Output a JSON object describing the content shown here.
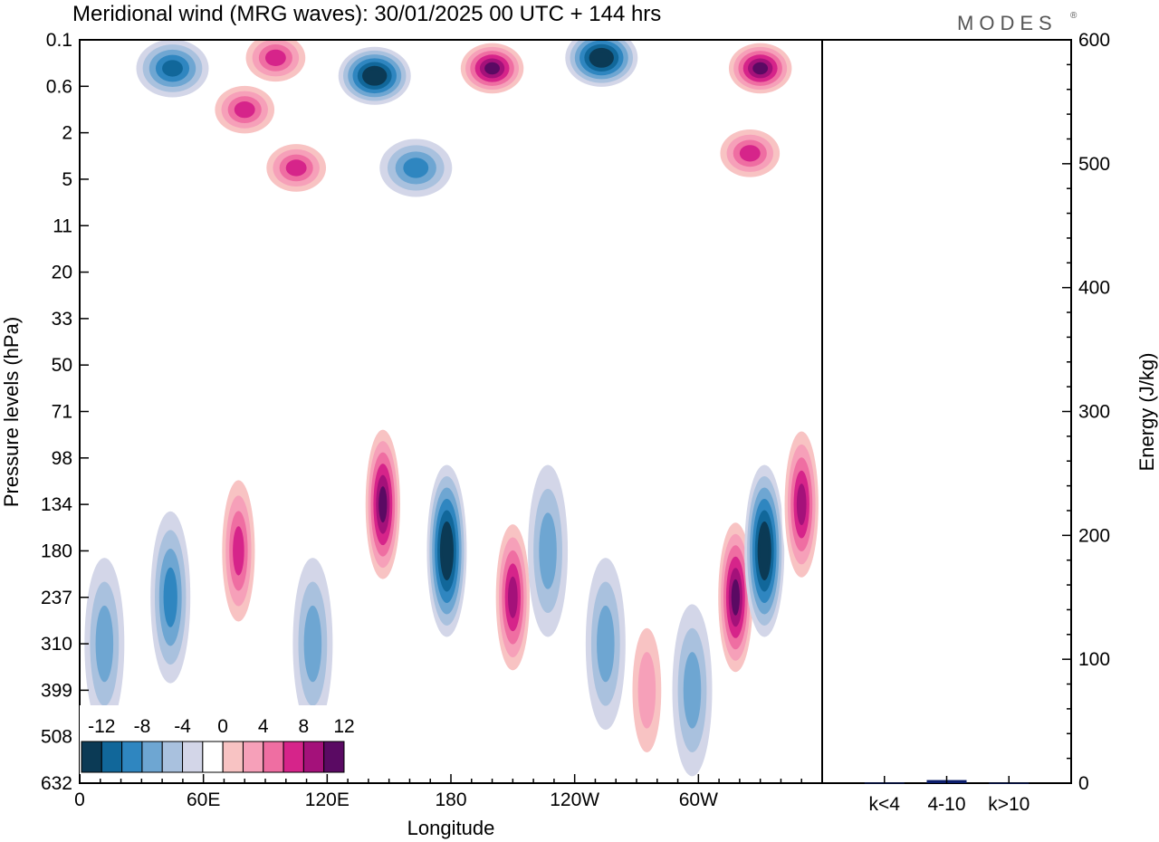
{
  "title": "Meridional wind (MRG waves):  30/01/2025  00 UTC  + 144 hrs",
  "brand": "MODES",
  "brand_mark": "®",
  "colors": {
    "levels": [
      "#0b3a55",
      "#11679a",
      "#2f86c0",
      "#6ea6d2",
      "#a9c1de",
      "#d3d6e8",
      "#ffffff",
      "#f8c3c3",
      "#f6a0b9",
      "#ef6ea2",
      "#d6248a",
      "#a4117a",
      "#5a0a63"
    ]
  },
  "chart_data": [
    {
      "type": "heatmap",
      "title": "Meridional wind (MRG waves):  30/01/2025  00 UTC  + 144 hrs",
      "xlabel": "Longitude",
      "ylabel": "Pressure levels (hPa)",
      "x_ticks": [
        "0",
        "60E",
        "120E",
        "180",
        "120W",
        "60W"
      ],
      "x_ticks_deg": [
        0,
        60,
        120,
        180,
        240,
        300
      ],
      "xlim_deg": [
        0,
        360
      ],
      "y_ticks": [
        "0.1",
        "0.6",
        "2",
        "5",
        "11",
        "20",
        "33",
        "50",
        "71",
        "98",
        "134",
        "180",
        "237",
        "310",
        "399",
        "508",
        "632"
      ],
      "y_axis_order": "top-to-bottom",
      "colorbar_ticks": [
        "-12",
        "-8",
        "-4",
        "0",
        "4",
        "8",
        "12"
      ],
      "colorbar_placement": "bottom-left",
      "features": [
        {
          "lon": 178,
          "p": 180,
          "sign": "negative",
          "peak": -14
        },
        {
          "lon": 147,
          "p": 134,
          "sign": "positive",
          "peak": 14
        },
        {
          "lon": 210,
          "p": 237,
          "sign": "positive",
          "peak": 12
        },
        {
          "lon": 318,
          "p": 237,
          "sign": "positive",
          "peak": 14
        },
        {
          "lon": 332,
          "p": 180,
          "sign": "negative",
          "peak": -14
        },
        {
          "lon": 350,
          "p": 134,
          "sign": "positive",
          "peak": 12
        },
        {
          "lon": 77,
          "p": 180,
          "sign": "positive",
          "peak": 10
        },
        {
          "lon": 44,
          "p": 237,
          "sign": "negative",
          "peak": -8
        },
        {
          "lon": 12,
          "p": 310,
          "sign": "negative",
          "peak": -6
        },
        {
          "lon": 113,
          "p": 310,
          "sign": "negative",
          "peak": -6
        },
        {
          "lon": 227,
          "p": 180,
          "sign": "negative",
          "peak": -6
        },
        {
          "lon": 255,
          "p": 310,
          "sign": "negative",
          "peak": -6
        },
        {
          "lon": 275,
          "p": 399,
          "sign": "positive",
          "peak": 6
        },
        {
          "lon": 297,
          "p": 399,
          "sign": "negative",
          "peak": -6
        },
        {
          "lon": 143,
          "p": 0.4,
          "sign": "negative",
          "peak": -14
        },
        {
          "lon": 200,
          "p": 0.3,
          "sign": "positive",
          "peak": 14
        },
        {
          "lon": 253,
          "p": 0.2,
          "sign": "negative",
          "peak": -14
        },
        {
          "lon": 330,
          "p": 0.3,
          "sign": "positive",
          "peak": 14
        },
        {
          "lon": 45,
          "p": 0.3,
          "sign": "negative",
          "peak": -10
        },
        {
          "lon": 95,
          "p": 0.2,
          "sign": "positive",
          "peak": 10
        },
        {
          "lon": 80,
          "p": 1.1,
          "sign": "positive",
          "peak": 10
        },
        {
          "lon": 105,
          "p": 4,
          "sign": "positive",
          "peak": 10
        },
        {
          "lon": 163,
          "p": 4,
          "sign": "negative",
          "peak": -8
        },
        {
          "lon": 325,
          "p": 3,
          "sign": "positive",
          "peak": 10
        }
      ]
    },
    {
      "type": "bar",
      "categories": [
        "k<4",
        "4-10",
        "k>10"
      ],
      "values": [
        0.4,
        2.5,
        0.3
      ],
      "ylabel": "Energy (J/kg)",
      "y_ticks": [
        "0",
        "100",
        "200",
        "300",
        "400",
        "500",
        "600"
      ],
      "ylim": [
        0,
        600
      ],
      "color": "#0b1d6b"
    }
  ]
}
